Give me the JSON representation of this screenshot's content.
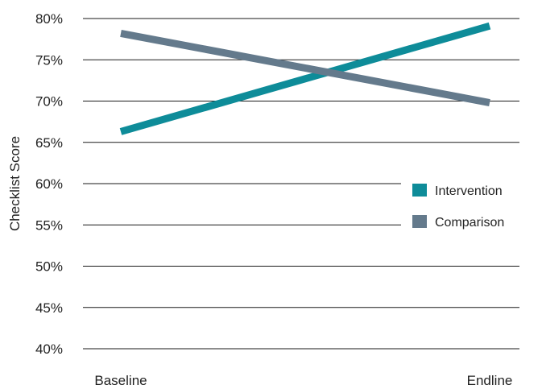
{
  "chart_data": {
    "type": "line",
    "categories": [
      "Baseline",
      "Endline"
    ],
    "series": [
      {
        "name": "Intervention",
        "color": "#0e8c99",
        "values": [
          66.3,
          79.1
        ]
      },
      {
        "name": "Comparison",
        "color": "#647a8c",
        "values": [
          78.2,
          69.8
        ]
      }
    ],
    "ylabel": "Checklist Score",
    "xlabel": "",
    "ylim": [
      40,
      80
    ],
    "yticks": [
      40,
      45,
      50,
      55,
      60,
      65,
      70,
      75,
      80
    ],
    "ytick_labels": [
      "40%",
      "45%",
      "50%",
      "55%",
      "60%",
      "65%",
      "70%",
      "75%",
      "80%"
    ],
    "grid": "horizontal",
    "legend_position": "right"
  }
}
